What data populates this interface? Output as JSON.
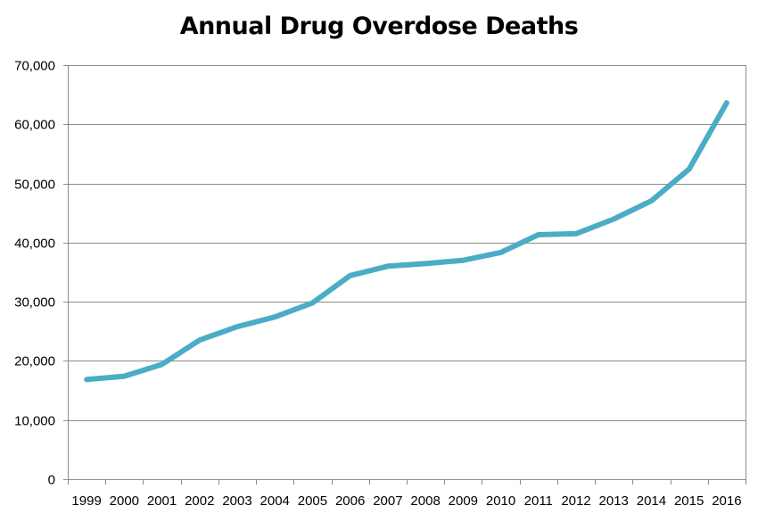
{
  "chart_data": {
    "type": "line",
    "title": "Annual Drug Overdose Deaths",
    "xlabel": "",
    "ylabel": "",
    "categories": [
      "1999",
      "2000",
      "2001",
      "2002",
      "2003",
      "2004",
      "2005",
      "2006",
      "2007",
      "2008",
      "2009",
      "2010",
      "2011",
      "2012",
      "2013",
      "2014",
      "2015",
      "2016"
    ],
    "y_ticks": [
      "0",
      "10,000",
      "20,000",
      "30,000",
      "40,000",
      "50,000",
      "60,000",
      "70,000"
    ],
    "ylim": [
      0,
      70000
    ],
    "grid": true,
    "legend": "none",
    "series": [
      {
        "color": "#4bacc6",
        "values": [
          16849,
          17415,
          19394,
          23518,
          25785,
          27424,
          29813,
          34425,
          36010,
          36450,
          37004,
          38329,
          41340,
          41502,
          43982,
          47055,
          52404,
          63632
        ]
      }
    ]
  }
}
